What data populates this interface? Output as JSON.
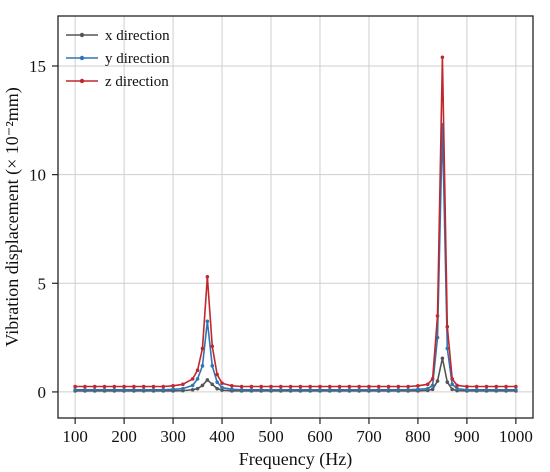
{
  "chart_data": {
    "type": "line",
    "xlabel": "Frequency (Hz)",
    "ylabel": "Vibration displacement (× 10⁻²mm)",
    "xlim": [
      65,
      1035
    ],
    "ylim": [
      -1.2,
      17.3
    ],
    "x_ticks": [
      100,
      200,
      300,
      400,
      500,
      600,
      700,
      800,
      900,
      1000
    ],
    "y_ticks": [
      0,
      5,
      10,
      15
    ],
    "grid": true,
    "legend_position": "top-left",
    "x": [
      100,
      120,
      140,
      160,
      180,
      200,
      220,
      240,
      260,
      280,
      300,
      320,
      340,
      350,
      360,
      370,
      380,
      390,
      400,
      420,
      440,
      460,
      480,
      500,
      520,
      540,
      560,
      580,
      600,
      620,
      640,
      660,
      680,
      700,
      720,
      740,
      760,
      780,
      800,
      820,
      830,
      840,
      850,
      860,
      870,
      880,
      900,
      920,
      940,
      960,
      980,
      1000
    ],
    "series": [
      {
        "name": "x direction",
        "color": "#555555",
        "values": [
          0.05,
          0.05,
          0.05,
          0.05,
          0.05,
          0.05,
          0.05,
          0.05,
          0.05,
          0.05,
          0.05,
          0.06,
          0.1,
          0.15,
          0.3,
          0.55,
          0.35,
          0.15,
          0.08,
          0.05,
          0.05,
          0.05,
          0.05,
          0.05,
          0.05,
          0.05,
          0.05,
          0.05,
          0.05,
          0.05,
          0.05,
          0.05,
          0.05,
          0.05,
          0.05,
          0.05,
          0.05,
          0.05,
          0.05,
          0.07,
          0.12,
          0.5,
          1.55,
          0.45,
          0.12,
          0.06,
          0.05,
          0.05,
          0.05,
          0.05,
          0.05,
          0.05
        ]
      },
      {
        "name": "y direction",
        "color": "#2E75B6",
        "values": [
          0.1,
          0.1,
          0.1,
          0.1,
          0.1,
          0.1,
          0.1,
          0.1,
          0.1,
          0.1,
          0.12,
          0.15,
          0.3,
          0.6,
          1.2,
          3.25,
          1.2,
          0.45,
          0.2,
          0.12,
          0.1,
          0.1,
          0.1,
          0.1,
          0.1,
          0.1,
          0.1,
          0.1,
          0.1,
          0.1,
          0.1,
          0.1,
          0.1,
          0.1,
          0.1,
          0.1,
          0.1,
          0.1,
          0.12,
          0.15,
          0.3,
          2.5,
          12.3,
          2.0,
          0.35,
          0.15,
          0.1,
          0.1,
          0.1,
          0.1,
          0.1,
          0.1
        ]
      },
      {
        "name": "z direction",
        "color": "#C0282C",
        "values": [
          0.25,
          0.25,
          0.25,
          0.25,
          0.25,
          0.25,
          0.25,
          0.25,
          0.25,
          0.25,
          0.28,
          0.35,
          0.6,
          1.0,
          2.0,
          5.3,
          2.1,
          0.8,
          0.4,
          0.28,
          0.25,
          0.25,
          0.25,
          0.25,
          0.25,
          0.25,
          0.25,
          0.25,
          0.25,
          0.25,
          0.25,
          0.25,
          0.25,
          0.25,
          0.25,
          0.25,
          0.25,
          0.25,
          0.28,
          0.35,
          0.6,
          3.5,
          15.4,
          3.0,
          0.6,
          0.3,
          0.25,
          0.25,
          0.25,
          0.25,
          0.25,
          0.25
        ]
      }
    ]
  }
}
